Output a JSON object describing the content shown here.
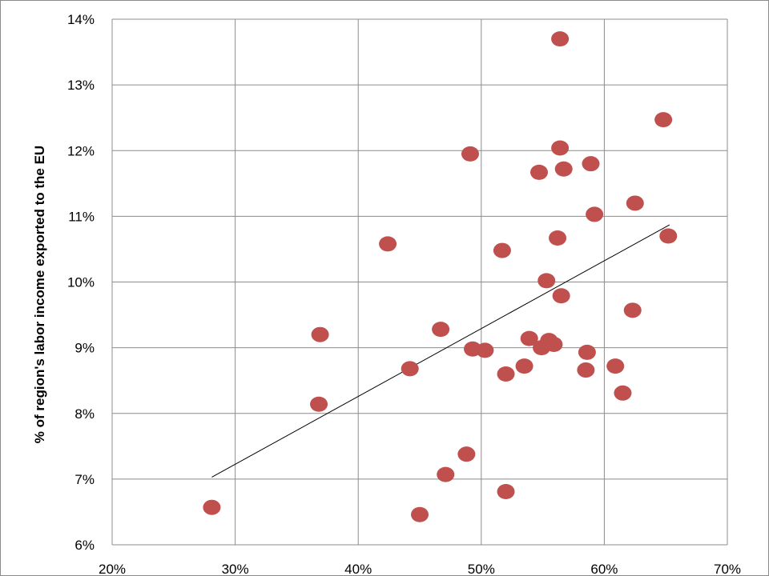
{
  "chart_data": {
    "type": "scatter",
    "title": "",
    "xlabel": "",
    "ylabel": "% of region's labor income exported to the EU",
    "xlim": [
      0.2,
      0.7
    ],
    "ylim": [
      0.06,
      0.14
    ],
    "x_ticks": [
      0.2,
      0.3,
      0.4,
      0.5,
      0.6,
      0.7
    ],
    "y_ticks": [
      0.06,
      0.07,
      0.08,
      0.09,
      0.1,
      0.11,
      0.12,
      0.13,
      0.14
    ],
    "x_tick_labels": [
      "20%",
      "30%",
      "40%",
      "50%",
      "60%",
      "70%"
    ],
    "y_tick_labels": [
      "6%",
      "7%",
      "8%",
      "9%",
      "10%",
      "11%",
      "12%",
      "13%",
      "14%"
    ],
    "grid": true,
    "legend": "none",
    "point_color": "#c0504d",
    "trendline": {
      "x": [
        0.281,
        0.653
      ],
      "y": [
        0.0703,
        0.1087
      ],
      "color": "#000000"
    },
    "series": [
      {
        "points": [
          [
            0.281,
            0.0657
          ],
          [
            0.369,
            0.092
          ],
          [
            0.368,
            0.0814
          ],
          [
            0.424,
            0.1058
          ],
          [
            0.442,
            0.0868
          ],
          [
            0.45,
            0.0646
          ],
          [
            0.467,
            0.0928
          ],
          [
            0.471,
            0.0707
          ],
          [
            0.488,
            0.0738
          ],
          [
            0.491,
            0.1195
          ],
          [
            0.493,
            0.0898
          ],
          [
            0.503,
            0.0896
          ],
          [
            0.517,
            0.1048
          ],
          [
            0.52,
            0.086
          ],
          [
            0.52,
            0.0681
          ],
          [
            0.535,
            0.0872
          ],
          [
            0.539,
            0.0914
          ],
          [
            0.547,
            0.1167
          ],
          [
            0.549,
            0.09
          ],
          [
            0.553,
            0.1002
          ],
          [
            0.555,
            0.0911
          ],
          [
            0.559,
            0.0905
          ],
          [
            0.562,
            0.1067
          ],
          [
            0.564,
            0.137
          ],
          [
            0.564,
            0.1204
          ],
          [
            0.565,
            0.0979
          ],
          [
            0.567,
            0.1172
          ],
          [
            0.585,
            0.0866
          ],
          [
            0.586,
            0.0893
          ],
          [
            0.589,
            0.118
          ],
          [
            0.592,
            0.1103
          ],
          [
            0.609,
            0.0872
          ],
          [
            0.615,
            0.0831
          ],
          [
            0.623,
            0.0957
          ],
          [
            0.625,
            0.112
          ],
          [
            0.648,
            0.1247
          ],
          [
            0.652,
            0.107
          ]
        ]
      }
    ]
  }
}
